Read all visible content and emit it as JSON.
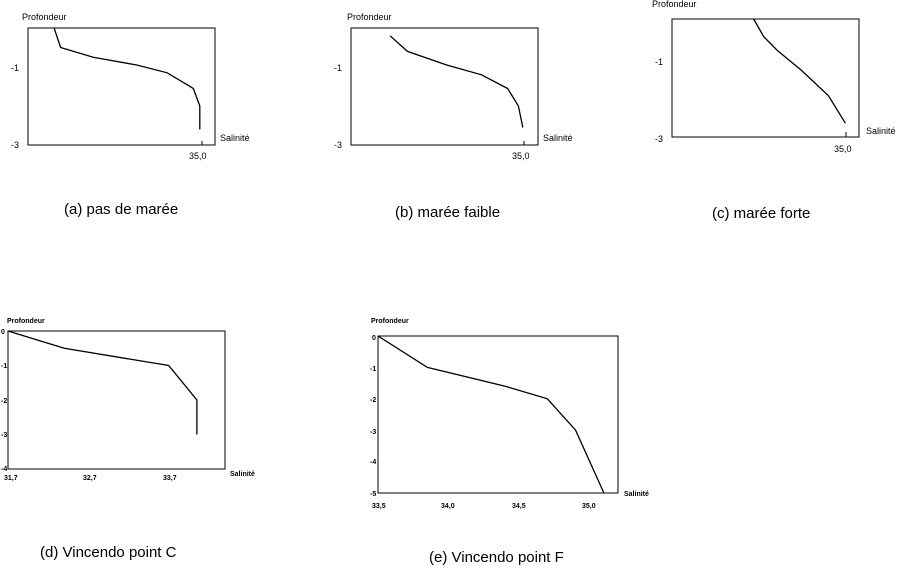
{
  "chart_data": [
    {
      "id": "a",
      "type": "line",
      "ylabel": "Profondeur",
      "xlabel": "Salinité",
      "x_ticks": [
        "35,0"
      ],
      "y_ticks": [
        "-1",
        "-3"
      ],
      "caption": "(a) pas de marée",
      "x": [
        31.6,
        31.75,
        32.5,
        33.5,
        34.2,
        34.8,
        34.95,
        34.95
      ],
      "y": [
        0.0,
        -0.5,
        -0.75,
        -0.95,
        -1.15,
        -1.55,
        -2.0,
        -2.6
      ],
      "xlim": [
        31.0,
        35.3
      ],
      "ylim": [
        -3.0,
        0.0
      ]
    },
    {
      "id": "b",
      "type": "line",
      "ylabel": "Profondeur",
      "xlabel": "Salinité",
      "x_ticks": [
        "35,0"
      ],
      "y_ticks": [
        "-1",
        "-3"
      ],
      "caption": "(b) marée faible",
      "x": [
        31.9,
        32.3,
        33.2,
        34.0,
        34.6,
        34.85,
        34.95
      ],
      "y": [
        -0.2,
        -0.6,
        -0.95,
        -1.2,
        -1.55,
        -2.0,
        -2.55
      ],
      "xlim": [
        31.0,
        35.3
      ],
      "ylim": [
        -3.0,
        0.0
      ]
    },
    {
      "id": "c",
      "type": "line",
      "ylabel": "Profondeur",
      "xlabel": "Salinité",
      "x_ticks": [
        "35,0"
      ],
      "y_ticks": [
        "-1",
        "-3"
      ],
      "caption": "(c) marée forte",
      "x": [
        32.2,
        32.5,
        32.9,
        33.6,
        34.4,
        34.9
      ],
      "y": [
        0.0,
        -0.45,
        -0.8,
        -1.3,
        -1.95,
        -2.65
      ],
      "xlim": [
        29.8,
        35.3
      ],
      "ylim": [
        -3.0,
        0.0
      ]
    },
    {
      "id": "d",
      "type": "line",
      "ylabel": "Profondeur",
      "xlabel": "Salinité",
      "x_ticks": [
        "31,7",
        "32,7",
        "33,7"
      ],
      "y_ticks": [
        "0",
        "-1",
        "-2",
        "-3",
        "-4"
      ],
      "caption": "(d) Vincendo point C",
      "x": [
        31.7,
        32.4,
        33.7,
        34.05,
        34.05
      ],
      "y": [
        0.0,
        -0.5,
        -1.0,
        -2.0,
        -3.0
      ],
      "xlim": [
        31.7,
        34.4
      ],
      "ylim": [
        -4.0,
        0.0
      ]
    },
    {
      "id": "e",
      "type": "line",
      "ylabel": "Profondeur",
      "xlabel": "Salinité",
      "x_ticks": [
        "33,5",
        "34,0",
        "34,5",
        "35,0"
      ],
      "y_ticks": [
        "0",
        "-1",
        "-2",
        "-3",
        "-4",
        "-5"
      ],
      "caption": "(e) Vincendo point F",
      "x": [
        33.5,
        33.85,
        34.4,
        34.7,
        34.9,
        35.1
      ],
      "y": [
        0.0,
        -1.0,
        -1.6,
        -2.0,
        -3.0,
        -5.0
      ],
      "xlim": [
        33.5,
        35.2
      ],
      "ylim": [
        -5.0,
        0.0
      ]
    }
  ]
}
